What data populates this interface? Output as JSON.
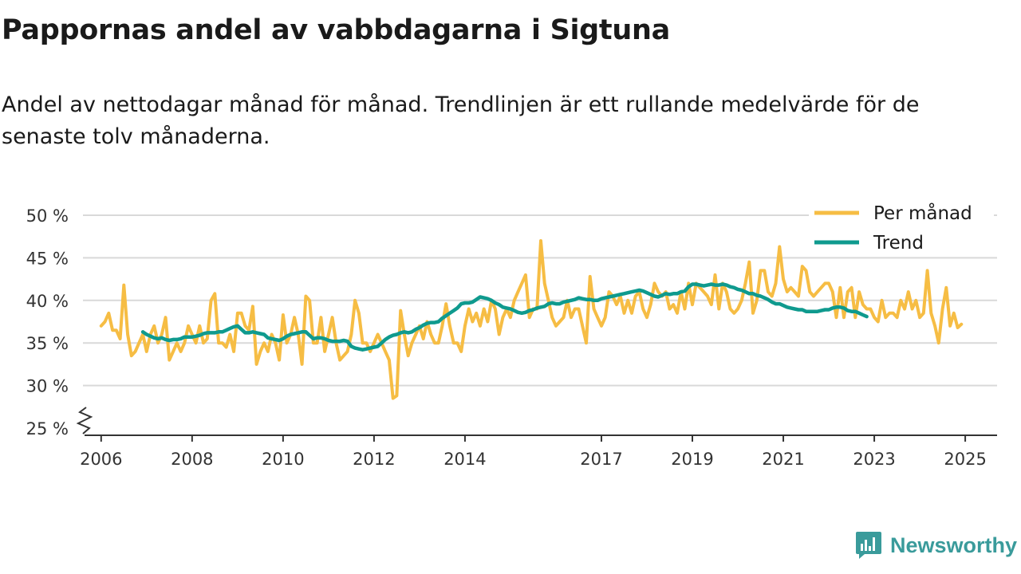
{
  "title": "Pappornas andel av vabbdagarna i Sigtuna",
  "subtitle": "Andel av nettodagar månad för månad. Trendlinjen är ett rullande medelvärde för de senaste tolv månaderna.",
  "brand": "Newsworthy",
  "colors": {
    "monthly": "#f6bd44",
    "trend": "#0f9a8e",
    "grid": "#d9d9d9",
    "axis": "#333333",
    "brand": "#3a9b9b"
  },
  "chart_data": {
    "type": "line",
    "title": "Pappornas andel av vabbdagarna i Sigtuna",
    "xlabel": "",
    "ylabel": "",
    "ylim": [
      25,
      50
    ],
    "xlim": [
      2005.6,
      2025.7
    ],
    "y_ticks": [
      25,
      30,
      35,
      40,
      45,
      50
    ],
    "y_tick_labels": [
      "25 %",
      "30 %",
      "35 %",
      "40 %",
      "45 %",
      "50 %"
    ],
    "x_ticks": [
      2006,
      2008,
      2010,
      2012,
      2014,
      2017,
      2019,
      2021,
      2023,
      2025
    ],
    "x_tick_labels": [
      "2006",
      "2008",
      "2010",
      "2012",
      "2014",
      "2017",
      "2019",
      "2021",
      "2023",
      "2025"
    ],
    "legend_position": "top-right",
    "series": [
      {
        "name": "Per månad",
        "start": [
          2006,
          1
        ],
        "values": [
          37.0,
          37.5,
          38.5,
          36.5,
          36.5,
          35.5,
          41.8,
          36.0,
          33.5,
          34.0,
          35.0,
          36.0,
          34.0,
          36.0,
          37.0,
          35.0,
          36.0,
          38.0,
          33.0,
          34.0,
          35.0,
          34.0,
          35.0,
          37.0,
          36.0,
          35.0,
          37.0,
          35.0,
          35.5,
          40.0,
          40.8,
          35.0,
          35.0,
          34.5,
          36.0,
          34.0,
          38.5,
          38.5,
          37.0,
          36.5,
          39.3,
          32.5,
          34.0,
          35.0,
          34.0,
          36.0,
          35.0,
          33.0,
          38.3,
          35.0,
          36.0,
          38.0,
          36.0,
          32.5,
          40.5,
          40.0,
          35.0,
          35.0,
          38.0,
          34.0,
          36.0,
          38.0,
          35.0,
          33.0,
          33.5,
          34.0,
          36.0,
          40.0,
          38.5,
          35.0,
          35.0,
          34.0,
          35.0,
          36.0,
          35.0,
          34.0,
          33.0,
          28.5,
          28.8,
          38.8,
          36.0,
          33.5,
          35.0,
          36.0,
          37.0,
          35.5,
          37.5,
          36.0,
          35.0,
          35.0,
          37.0,
          39.6,
          37.0,
          35.0,
          35.0,
          34.0,
          37.0,
          39.0,
          37.5,
          38.5,
          37.0,
          39.0,
          37.5,
          40.0,
          39.0,
          36.0,
          38.0,
          39.0,
          38.0,
          40.0,
          41.0,
          42.0,
          43.0,
          38.0,
          39.0,
          39.0,
          47.0,
          42.0,
          40.0,
          38.0,
          37.0,
          37.5,
          38.0,
          40.0,
          38.0,
          39.0,
          39.0,
          37.0,
          35.0,
          42.8,
          39.0,
          38.0,
          37.0,
          38.0,
          41.0,
          40.5,
          39.5,
          40.5,
          38.5,
          40.0,
          38.5,
          40.5,
          41.0,
          39.0,
          38.0,
          39.5,
          42.0,
          41.0,
          40.5,
          41.0,
          39.0,
          39.5,
          38.5,
          41.0,
          39.0,
          42.0,
          39.5,
          42.0,
          41.5,
          41.0,
          40.5,
          39.5,
          43.0,
          39.0,
          42.0,
          41.0,
          39.0,
          38.5,
          39.0,
          40.0,
          42.0,
          44.5,
          38.5,
          40.0,
          43.5,
          43.5,
          41.0,
          40.5,
          42.0,
          46.3,
          42.5,
          41.0,
          41.5,
          41.0,
          40.5,
          44.0,
          43.5,
          41.0,
          40.5,
          41.0,
          41.5,
          42.0,
          42.0,
          41.0,
          38.0,
          41.5,
          38.0,
          41.0,
          41.5,
          38.0,
          41.0,
          39.5,
          39.0,
          39.0,
          38.0,
          37.5,
          40.0,
          38.0,
          38.5,
          38.5,
          38.0,
          40.0,
          39.0,
          41.0,
          39.0,
          40.0,
          38.0,
          38.5,
          43.5,
          38.5,
          37.0,
          35.0,
          39.0,
          41.5,
          37.0,
          38.5,
          36.8,
          37.2
        ]
      },
      {
        "name": "Trend",
        "start": [
          2006,
          12
        ],
        "values": [
          36.3,
          36.0,
          35.8,
          35.6,
          35.5,
          35.6,
          35.4,
          35.3,
          35.4,
          35.4,
          35.5,
          35.7,
          35.7,
          35.7,
          35.8,
          35.9,
          36.1,
          36.2,
          36.2,
          36.2,
          36.3,
          36.3,
          36.5,
          36.7,
          36.9,
          37.0,
          36.6,
          36.2,
          36.2,
          36.3,
          36.2,
          36.1,
          36.0,
          35.6,
          35.5,
          35.4,
          35.3,
          35.5,
          35.8,
          36.0,
          36.1,
          36.2,
          36.3,
          36.3,
          35.9,
          35.5,
          35.6,
          35.6,
          35.5,
          35.3,
          35.2,
          35.2,
          35.2,
          35.3,
          35.2,
          34.6,
          34.4,
          34.3,
          34.2,
          34.3,
          34.4,
          34.5,
          34.6,
          35.0,
          35.4,
          35.7,
          35.9,
          36.0,
          36.2,
          36.3,
          36.2,
          36.3,
          36.6,
          36.8,
          37.1,
          37.3,
          37.4,
          37.4,
          37.5,
          37.9,
          38.2,
          38.5,
          38.8,
          39.1,
          39.6,
          39.7,
          39.7,
          39.8,
          40.1,
          40.4,
          40.3,
          40.2,
          40.0,
          39.7,
          39.5,
          39.2,
          39.1,
          39.0,
          38.8,
          38.6,
          38.5,
          38.6,
          38.8,
          38.9,
          39.1,
          39.2,
          39.3,
          39.6,
          39.7,
          39.6,
          39.6,
          39.8,
          39.9,
          40.0,
          40.1,
          40.3,
          40.2,
          40.1,
          40.1,
          40.0,
          40.0,
          40.2,
          40.3,
          40.4,
          40.5,
          40.6,
          40.7,
          40.8,
          40.9,
          41.0,
          41.1,
          41.2,
          41.1,
          40.9,
          40.7,
          40.5,
          40.4,
          40.6,
          40.8,
          40.7,
          40.8,
          40.8,
          41.0,
          41.1,
          41.6,
          41.9,
          41.9,
          41.8,
          41.7,
          41.8,
          41.9,
          41.8,
          41.8,
          41.9,
          41.8,
          41.6,
          41.5,
          41.3,
          41.2,
          41.0,
          40.8,
          40.8,
          40.6,
          40.5,
          40.3,
          40.1,
          39.8,
          39.6,
          39.6,
          39.4,
          39.2,
          39.1,
          39.0,
          38.9,
          38.9,
          38.7,
          38.7,
          38.7,
          38.7,
          38.8,
          38.9,
          38.9,
          39.1,
          39.2,
          39.2,
          39.1,
          38.8,
          38.7,
          38.7,
          38.5,
          38.3,
          38.1
        ]
      }
    ]
  }
}
